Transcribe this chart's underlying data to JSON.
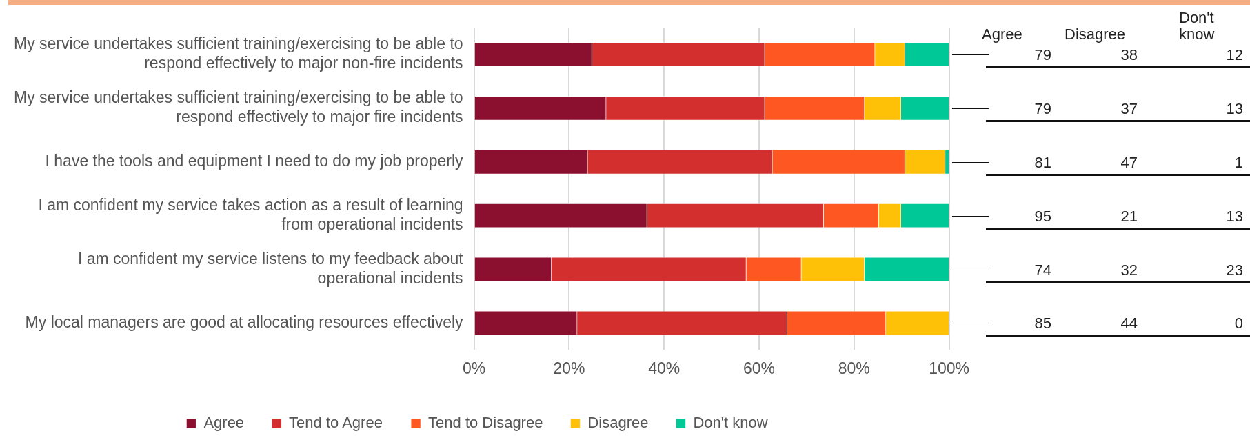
{
  "chart_data": [
    {
      "type": "bar",
      "orientation": "horizontal",
      "stacked": true,
      "categories": [
        "My service undertakes sufficient training/exercising to be able to respond effectively to major non-fire incidents",
        "My service undertakes sufficient training/exercising to be able to respond effectively to major fire incidents",
        "I have the tools and equipment I need to do my job properly",
        "I am confident my service takes action as a result of learning from operational incidents",
        "I am confident my service listens to my feedback about operational incidents",
        "My local managers are good at allocating resources effectively"
      ],
      "series": [
        {
          "name": "Agree",
          "color": "#8b1030",
          "values": [
            24.8,
            27.8,
            23.9,
            36.4,
            16.3,
            21.7
          ]
        },
        {
          "name": "Tend to Agree",
          "color": "#d32f2f",
          "values": [
            36.4,
            33.4,
            38.9,
            37.2,
            41.0,
            44.2
          ]
        },
        {
          "name": "Tend to Disagree",
          "color": "#ff5722",
          "values": [
            23.2,
            21.0,
            27.9,
            11.6,
            11.6,
            20.8
          ]
        },
        {
          "name": "Disagree",
          "color": "#ffc107",
          "values": [
            6.3,
            7.7,
            8.5,
            4.7,
            13.3,
            13.3
          ]
        },
        {
          "name": "Don't know",
          "color": "#00c897",
          "values": [
            9.3,
            10.1,
            0.8,
            10.1,
            17.8,
            0
          ]
        }
      ],
      "xlim": [
        0,
        100
      ],
      "xticks": [
        {
          "value": 0,
          "label": "0%"
        },
        {
          "value": 20,
          "label": "20%"
        },
        {
          "value": 40,
          "label": "40%"
        },
        {
          "value": 60,
          "label": "60%"
        },
        {
          "value": 80,
          "label": "80%"
        },
        {
          "value": 100,
          "label": "100%"
        }
      ],
      "grid": "x",
      "legend": "bottom"
    },
    {
      "type": "other",
      "data_labels": true,
      "categories": [
        "Agree",
        "Disagree",
        "Don't know"
      ],
      "series": [
        {
          "values": [
            79,
            38,
            12
          ]
        },
        {
          "values": [
            79,
            37,
            13
          ]
        },
        {
          "values": [
            81,
            47,
            1
          ]
        },
        {
          "values": [
            95,
            21,
            13
          ]
        },
        {
          "values": [
            74,
            32,
            23
          ]
        },
        {
          "values": [
            85,
            44,
            0
          ]
        }
      ]
    }
  ]
}
